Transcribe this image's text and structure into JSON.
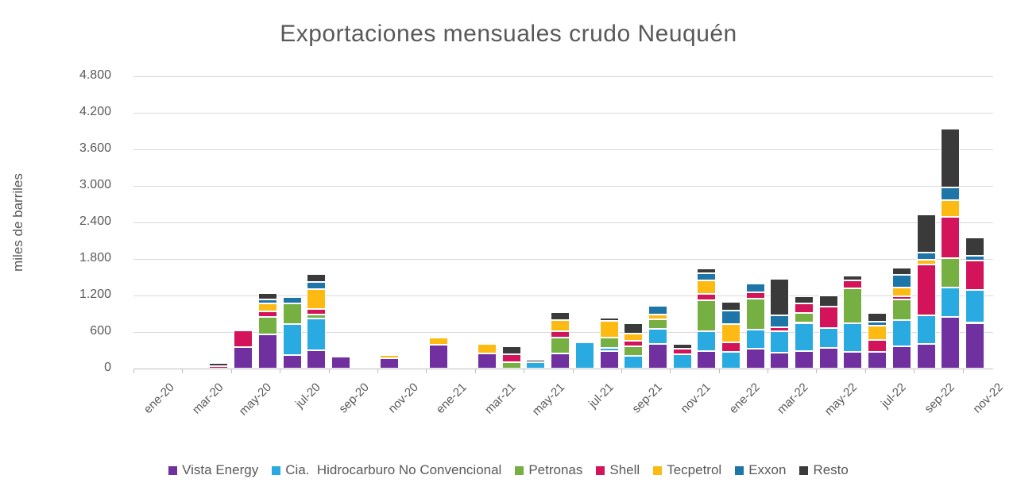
{
  "title": "Exportaciones mensuales crudo Neuquén",
  "y_axis": {
    "title": "miles de barriles",
    "labels_top_down": [
      "4.800",
      "4.200",
      "3.600",
      "3.000",
      "2.400",
      "1.800",
      "1.200",
      "600",
      "0"
    ]
  },
  "x_axis": {
    "labels": [
      "ene-20",
      "mar-20",
      "may-20",
      "jul-20",
      "sep-20",
      "nov-20",
      "ene-21",
      "mar-21",
      "may-21",
      "jul-21",
      "sep-21",
      "nov-21",
      "ene-22",
      "mar-22",
      "may-22",
      "jul-22",
      "sep-22",
      "nov-22"
    ]
  },
  "legend": [
    {
      "label": "Vista Energy",
      "color": "#7030A0"
    },
    {
      "label": "Cia.  Hidrocarburo No Convencional",
      "color": "#29ABE2"
    },
    {
      "label": "Petronas",
      "color": "#76B043"
    },
    {
      "label": "Shell",
      "color": "#D4145A"
    },
    {
      "label": "Tecpetrol",
      "color": "#FDBA12"
    },
    {
      "label": "Exxon",
      "color": "#1E76A8"
    },
    {
      "label": "Resto",
      "color": "#3A3A3A"
    }
  ],
  "chart_data": {
    "type": "bar",
    "stacked": true,
    "title": "Exportaciones mensuales crudo Neuquén",
    "xlabel": "",
    "ylabel": "miles de barriles",
    "ylim": [
      0,
      4800
    ],
    "ytick_step": 600,
    "grid": "horizontal",
    "legend_position": "bottom",
    "x_labels_shown_every": 2,
    "categories": [
      "ene-20",
      "feb-20",
      "mar-20",
      "abr-20",
      "may-20",
      "jun-20",
      "jul-20",
      "ago-20",
      "sep-20",
      "oct-20",
      "nov-20",
      "dic-20",
      "ene-21",
      "feb-21",
      "mar-21",
      "abr-21",
      "may-21",
      "jun-21",
      "jul-21",
      "ago-21",
      "sep-21",
      "oct-21",
      "nov-21",
      "dic-21",
      "ene-22",
      "feb-22",
      "mar-22",
      "abr-22",
      "may-22",
      "jun-22",
      "jul-22",
      "ago-22",
      "sep-22",
      "oct-22",
      "nov-22"
    ],
    "series": [
      {
        "name": "Vista Energy",
        "color": "#7030A0",
        "values": [
          0,
          0,
          0,
          0,
          355,
          555,
          220,
          305,
          190,
          0,
          170,
          0,
          390,
          0,
          245,
          0,
          0,
          250,
          0,
          290,
          0,
          410,
          0,
          285,
          0,
          330,
          265,
          290,
          335,
          270,
          270,
          365,
          400,
          850,
          750
        ]
      },
      {
        "name": "Cia.  Hidrocarburo No Convencional",
        "color": "#29ABE2",
        "values": [
          0,
          0,
          0,
          0,
          0,
          0,
          510,
          520,
          0,
          0,
          0,
          0,
          0,
          0,
          0,
          0,
          100,
          0,
          430,
          45,
          205,
          240,
          230,
          325,
          270,
          310,
          345,
          460,
          325,
          475,
          0,
          430,
          475,
          480,
          545
        ]
      },
      {
        "name": "Petronas",
        "color": "#76B043",
        "values": [
          0,
          0,
          0,
          0,
          0,
          295,
          335,
          60,
          0,
          0,
          0,
          0,
          0,
          0,
          0,
          110,
          0,
          260,
          0,
          175,
          155,
          160,
          0,
          510,
          0,
          505,
          0,
          165,
          0,
          570,
          0,
          335,
          0,
          485,
          0
        ]
      },
      {
        "name": "Shell",
        "color": "#D4145A",
        "values": [
          0,
          0,
          0,
          40,
          275,
          90,
          0,
          95,
          0,
          0,
          0,
          0,
          0,
          0,
          0,
          125,
          0,
          100,
          0,
          0,
          100,
          0,
          95,
          100,
          160,
          105,
          70,
          160,
          355,
          130,
          195,
          55,
          840,
          670,
          475
        ]
      },
      {
        "name": "Tecpetrol",
        "color": "#FDBA12",
        "values": [
          0,
          0,
          0,
          0,
          0,
          125,
          0,
          330,
          0,
          0,
          50,
          0,
          125,
          0,
          160,
          0,
          0,
          185,
          0,
          270,
          120,
          75,
          0,
          230,
          300,
          0,
          0,
          0,
          0,
          0,
          235,
          145,
          75,
          280,
          0
        ]
      },
      {
        "name": "Exxon",
        "color": "#1E76A8",
        "values": [
          0,
          0,
          0,
          0,
          0,
          65,
          115,
          115,
          0,
          0,
          0,
          0,
          0,
          0,
          0,
          0,
          0,
          0,
          0,
          0,
          0,
          145,
          0,
          115,
          225,
          145,
          200,
          0,
          0,
          0,
          70,
          205,
          110,
          210,
          85
        ]
      },
      {
        "name": "Resto",
        "color": "#3A3A3A",
        "values": [
          0,
          0,
          0,
          55,
          0,
          105,
          0,
          125,
          0,
          0,
          0,
          0,
          0,
          0,
          0,
          135,
          50,
          130,
          0,
          60,
          160,
          0,
          80,
          75,
          140,
          0,
          590,
          115,
          190,
          75,
          140,
          120,
          630,
          970,
          295
        ]
      }
    ]
  }
}
